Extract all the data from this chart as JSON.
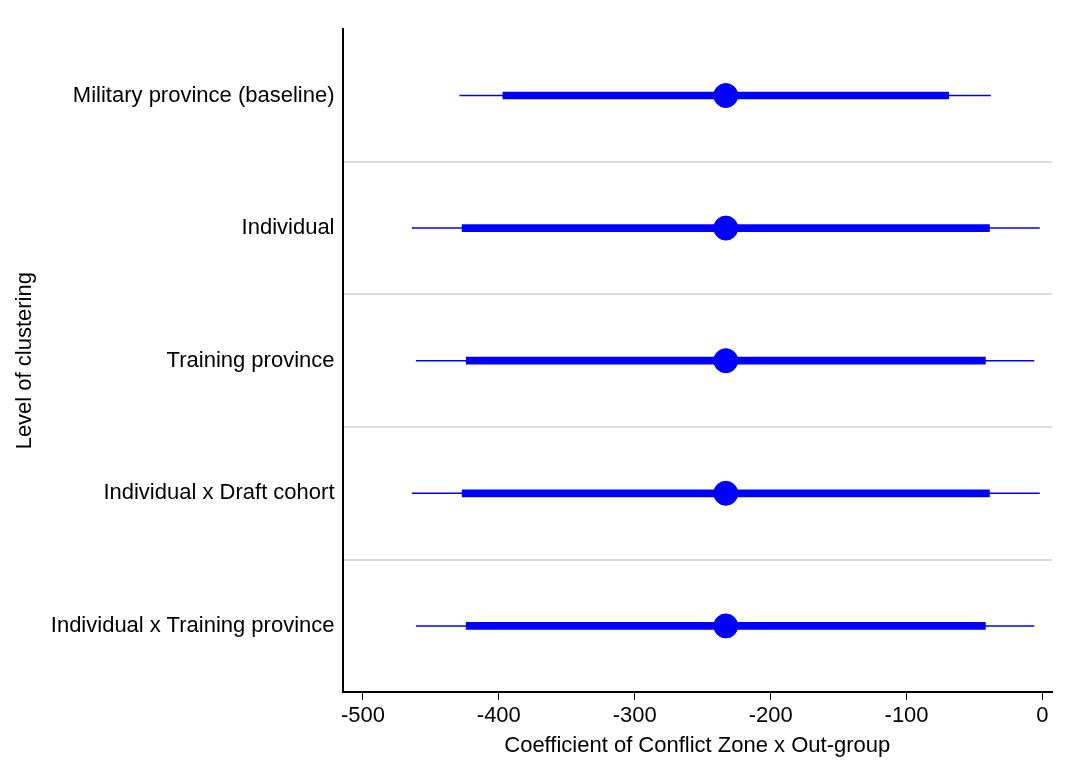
{
  "chart_data": {
    "type": "scatter",
    "orientation": "horizontal",
    "xlabel": "Coefficient of Conflict Zone x Out-group",
    "ylabel": "Level of clustering",
    "categories": [
      "Military province (baseline)",
      "Individual",
      "Training province",
      "Individual x Draft cohort",
      "Individual x Training province"
    ],
    "xlim": [
      -515,
      7
    ],
    "xticks": [
      -500,
      -400,
      -300,
      -200,
      -100,
      0
    ],
    "grid": "y",
    "legend": false,
    "marker": "circle",
    "series": [
      {
        "type": "bar",
        "color": "#0000ff",
        "base": [
          -397,
          -427,
          -424,
          -427,
          -424
        ],
        "values": [
          328,
          388,
          382,
          388,
          382
        ]
      },
      {
        "color": "#0000ff",
        "values": [
          -233,
          -233,
          -233,
          -233,
          -233
        ],
        "errors": [
          [
            -429,
            -38
          ],
          [
            -464,
            -2
          ],
          [
            -461,
            -6
          ],
          [
            -464,
            -2
          ],
          [
            -461,
            -6
          ]
        ]
      }
    ]
  }
}
